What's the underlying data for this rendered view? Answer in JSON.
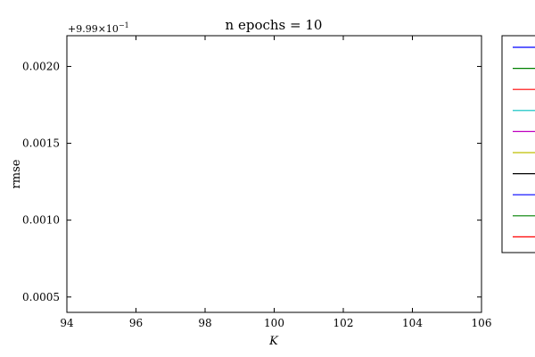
{
  "chart_data": {
    "type": "line",
    "title": "n epochs = 10",
    "xlabel": "K",
    "ylabel": "rmse",
    "y_offset_label": "+9.99×10",
    "y_offset_exponent": "−1",
    "xlim": [
      94,
      106
    ],
    "ylim": [
      0.0004,
      0.0022
    ],
    "x_ticks": [
      94,
      96,
      98,
      100,
      102,
      104,
      106
    ],
    "x_tick_labels": [
      "94",
      "96",
      "98",
      "100",
      "102",
      "104",
      "106"
    ],
    "y_ticks": [
      0.0005,
      0.001,
      0.0015,
      0.002
    ],
    "y_tick_labels": [
      "0.0005",
      "0.0010",
      "0.0015",
      "0.0020"
    ],
    "grid": false,
    "legend_placement": "outside-right",
    "series": [
      {
        "color": "#0000ff",
        "x": [],
        "y": []
      },
      {
        "color": "#008000",
        "x": [],
        "y": []
      },
      {
        "color": "#ff0000",
        "x": [],
        "y": []
      },
      {
        "color": "#00bfbf",
        "x": [],
        "y": []
      },
      {
        "color": "#bf00bf",
        "x": [],
        "y": []
      },
      {
        "color": "#bfbf00",
        "x": [],
        "y": []
      },
      {
        "color": "#000000",
        "x": [],
        "y": []
      },
      {
        "color": "#0000ff",
        "x": [],
        "y": []
      },
      {
        "color": "#008000",
        "x": [],
        "y": []
      },
      {
        "color": "#ff0000",
        "x": [],
        "y": []
      }
    ]
  }
}
